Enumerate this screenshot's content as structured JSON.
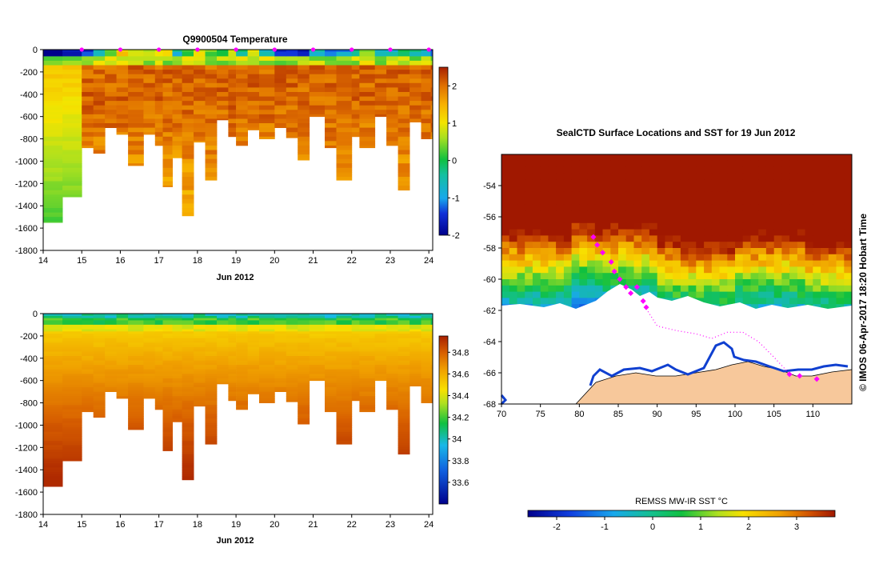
{
  "chart_data": [
    {
      "type": "heatmap",
      "id": "temperature-section",
      "title": "Q9900504  Temperature",
      "xlabel": "Jun 2012",
      "x_ticks": [
        "14",
        "15",
        "16",
        "17",
        "18",
        "19",
        "20",
        "21",
        "22",
        "23",
        "24"
      ],
      "xlim": [
        14,
        24.1
      ],
      "ylim": [
        -1800,
        0
      ],
      "y_ticks": [
        0,
        -200,
        -400,
        -600,
        -800,
        -1000,
        -1200,
        -1400,
        -1600,
        -1800
      ],
      "colorbar": {
        "min": -2,
        "max": 2.5,
        "ticks": [
          "-2",
          "-1",
          "0",
          "1",
          "2"
        ],
        "tick_values": [
          -2,
          -1,
          0,
          1,
          2
        ]
      },
      "profile_markers": [
        15,
        16,
        17,
        18,
        19,
        20,
        21,
        22,
        23,
        24
      ],
      "profile_days": [
        14.0,
        14.5,
        15.0,
        15.3,
        15.6,
        15.9,
        16.2,
        16.6,
        16.9,
        17.1,
        17.35,
        17.6,
        17.9,
        18.2,
        18.5,
        18.8,
        19.0,
        19.3,
        19.6,
        20.0,
        20.3,
        20.6,
        20.9,
        21.3,
        21.6,
        22.0,
        22.2,
        22.6,
        22.9,
        23.2,
        23.5,
        23.8,
        24.05
      ],
      "profile_max_depths": [
        1550,
        1320,
        880,
        930,
        700,
        760,
        1040,
        760,
        860,
        1230,
        970,
        1490,
        830,
        1170,
        630,
        780,
        860,
        720,
        800,
        700,
        790,
        990,
        600,
        880,
        1170,
        780,
        880,
        600,
        860,
        1260,
        650,
        800,
        800
      ]
    },
    {
      "type": "heatmap",
      "id": "salinity-section",
      "title": "",
      "xlabel": "Jun 2012",
      "x_ticks": [
        "14",
        "15",
        "16",
        "17",
        "18",
        "19",
        "20",
        "21",
        "22",
        "23",
        "24"
      ],
      "xlim": [
        14,
        24.1
      ],
      "ylim": [
        -1800,
        0
      ],
      "y_ticks": [
        0,
        -200,
        -400,
        -600,
        -800,
        -1000,
        -1200,
        -1400,
        -1600,
        -1800
      ],
      "colorbar": {
        "min": 33.4,
        "max": 34.95,
        "ticks": [
          "33.6",
          "33.8",
          "34",
          "34.2",
          "34.4",
          "34.6",
          "34.8"
        ],
        "tick_values": [
          33.6,
          33.8,
          34.0,
          34.2,
          34.4,
          34.6,
          34.8
        ]
      }
    },
    {
      "type": "heatmap",
      "id": "sst-map",
      "title": "SealCTD Surface Locations and SST for 19 Jun 2012",
      "x_ticks": [
        "70",
        "75",
        "80",
        "85",
        "90",
        "95",
        "100",
        "105",
        "110"
      ],
      "xlim": [
        70,
        115
      ],
      "y_ticks": [
        "-54",
        "-56",
        "-58",
        "-60",
        "-62",
        "-64",
        "-66",
        "-68"
      ],
      "ylim": [
        -68,
        -52
      ],
      "side_label": "© IMOS 06-Apr-2017 18:20 Hobart Time",
      "colorbar": {
        "label": "REMSS MW-IR SST °C",
        "min": -2.6,
        "max": 3.8,
        "ticks": [
          "-2",
          "-1",
          "0",
          "1",
          "2",
          "3"
        ],
        "tick_values": [
          -2,
          -1,
          0,
          1,
          2,
          3
        ]
      },
      "track_points": [
        [
          81.8,
          -57.3
        ],
        [
          82.3,
          -57.8
        ],
        [
          83.0,
          -58.3
        ],
        [
          84.1,
          -58.9
        ],
        [
          84.5,
          -59.5
        ],
        [
          85.2,
          -60.0
        ],
        [
          86.0,
          -60.5
        ],
        [
          86.6,
          -60.9
        ],
        [
          87.4,
          -60.5
        ],
        [
          88.2,
          -61.4
        ],
        [
          88.6,
          -61.8
        ],
        [
          107.0,
          -66.1
        ],
        [
          108.3,
          -66.2
        ],
        [
          110.5,
          -66.4
        ]
      ],
      "dotted_track": [
        [
          88.6,
          -61.9
        ],
        [
          90.0,
          -63.0
        ],
        [
          92.5,
          -63.3
        ],
        [
          95.0,
          -63.5
        ],
        [
          97.0,
          -63.8
        ],
        [
          99.0,
          -63.4
        ],
        [
          101.0,
          -63.4
        ],
        [
          103.0,
          -64.0
        ],
        [
          105.0,
          -65.0
        ],
        [
          106.5,
          -65.8
        ],
        [
          107.0,
          -66.1
        ]
      ]
    }
  ]
}
